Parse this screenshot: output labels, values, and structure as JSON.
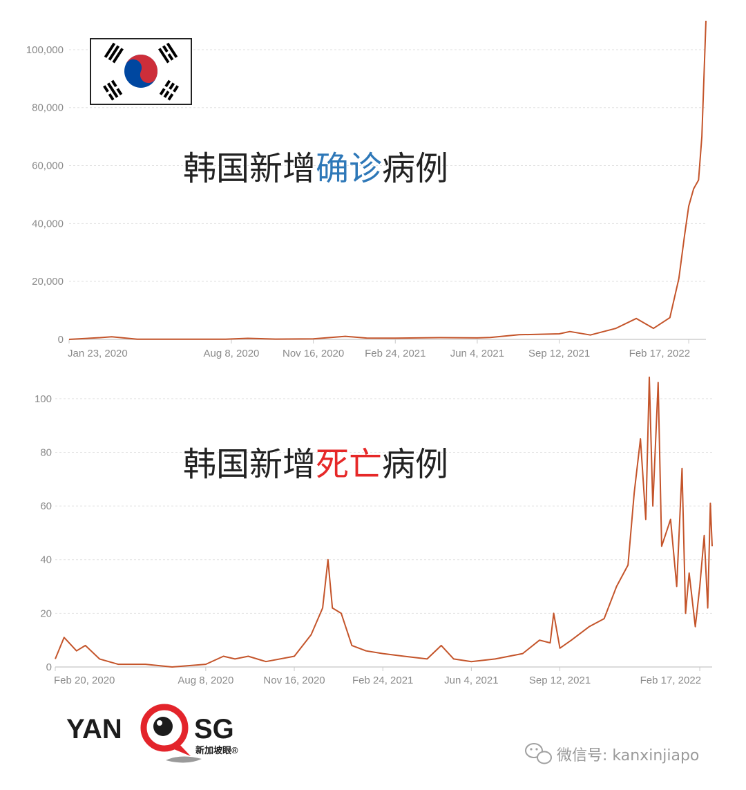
{
  "chart_data": [
    {
      "type": "line",
      "title": "韩国新增确诊病例",
      "title_parts": [
        {
          "text": "韩国新增",
          "color": "#222222"
        },
        {
          "text": "确诊",
          "color": "#2e78b8"
        },
        {
          "text": "病例",
          "color": "#222222"
        }
      ],
      "x_ticks": [
        "Jan 23, 2020",
        "Aug 8, 2020",
        "Nov 16, 2020",
        "Feb 24, 2021",
        "Jun 4, 2021",
        "Sep 12, 2021",
        "Feb 17, 2022"
      ],
      "y_ticks": [
        "0",
        "20,000",
        "40,000",
        "60,000",
        "80,000",
        "100,000"
      ],
      "ylim": [
        0,
        110000
      ],
      "series": [
        {
          "color": "#c4542a",
          "x": [
            "2020-01-23",
            "2020-03-01",
            "2020-03-15",
            "2020-04-15",
            "2020-08-01",
            "2020-08-28",
            "2020-10-01",
            "2020-11-16",
            "2020-12-25",
            "2021-01-20",
            "2021-02-24",
            "2021-04-20",
            "2021-06-04",
            "2021-06-20",
            "2021-07-25",
            "2021-08-25",
            "2021-09-12",
            "2021-09-25",
            "2021-10-20",
            "2021-11-20",
            "2021-12-15",
            "2022-01-05",
            "2022-01-25",
            "2022-02-05",
            "2022-02-12",
            "2022-02-17",
            "2022-02-23",
            "2022-03-01",
            "2022-03-05",
            "2022-03-10"
          ],
          "y": [
            0,
            600,
            900,
            50,
            40,
            350,
            90,
            200,
            1050,
            450,
            400,
            600,
            500,
            650,
            1600,
            1800,
            1900,
            2700,
            1500,
            3800,
            7200,
            3800,
            7500,
            21000,
            36000,
            46000,
            52000,
            55000,
            70000,
            110000
          ]
        }
      ]
    },
    {
      "type": "line",
      "title": "韩国新增死亡病例",
      "title_parts": [
        {
          "text": "韩国新增",
          "color": "#222222"
        },
        {
          "text": "死亡",
          "color": "#e62828"
        },
        {
          "text": "病例",
          "color": "#222222"
        }
      ],
      "x_ticks": [
        "Feb 20, 2020",
        "Aug 8, 2020",
        "Nov 16, 2020",
        "Feb 24, 2021",
        "Jun 4, 2021",
        "Sep 12, 2021",
        "Feb 17, 2022"
      ],
      "y_ticks": [
        "0",
        "20",
        "40",
        "60",
        "80",
        "100"
      ],
      "ylim": [
        0,
        110
      ],
      "series": [
        {
          "color": "#c4542a",
          "x": [
            "2020-02-20",
            "2020-03-01",
            "2020-03-15",
            "2020-03-25",
            "2020-04-10",
            "2020-05-01",
            "2020-06-01",
            "2020-07-01",
            "2020-08-08",
            "2020-08-28",
            "2020-09-10",
            "2020-09-25",
            "2020-10-15",
            "2020-11-16",
            "2020-12-05",
            "2020-12-18",
            "2020-12-24",
            "2020-12-29",
            "2021-01-08",
            "2021-01-20",
            "2021-02-05",
            "2021-02-24",
            "2021-03-20",
            "2021-04-15",
            "2021-05-01",
            "2021-05-15",
            "2021-06-04",
            "2021-07-01",
            "2021-08-01",
            "2021-08-20",
            "2021-09-01",
            "2021-09-05",
            "2021-09-12",
            "2021-09-25",
            "2021-10-15",
            "2021-11-01",
            "2021-11-15",
            "2021-11-28",
            "2021-12-05",
            "2021-12-12",
            "2021-12-18",
            "2021-12-22",
            "2021-12-26",
            "2022-01-01",
            "2022-01-05",
            "2022-01-15",
            "2022-01-22",
            "2022-01-28",
            "2022-02-01",
            "2022-02-05",
            "2022-02-12",
            "2022-02-17",
            "2022-02-22",
            "2022-02-26",
            "2022-03-01",
            "2022-03-03"
          ],
          "y": [
            3,
            11,
            6,
            8,
            3,
            1,
            1,
            0,
            1,
            4,
            3,
            4,
            2,
            4,
            12,
            22,
            40,
            22,
            20,
            8,
            6,
            5,
            4,
            3,
            8,
            3,
            2,
            3,
            5,
            10,
            9,
            20,
            7,
            10,
            15,
            18,
            30,
            38,
            65,
            85,
            55,
            108,
            60,
            106,
            45,
            55,
            30,
            74,
            20,
            35,
            15,
            30,
            49,
            22,
            61,
            45
          ]
        }
      ]
    }
  ],
  "flag": {
    "name": "south-korea-flag-icon",
    "red": "#cd2e3a",
    "blue": "#0047a0",
    "black": "#000000"
  },
  "logo": {
    "left_text": "YAN",
    "right_text": "SG",
    "sub_text": "新加坡眼®",
    "accent": "#e3242b"
  },
  "watermark": {
    "text": "微信号: kanxinjiapo",
    "icon": "wechat-icon"
  }
}
